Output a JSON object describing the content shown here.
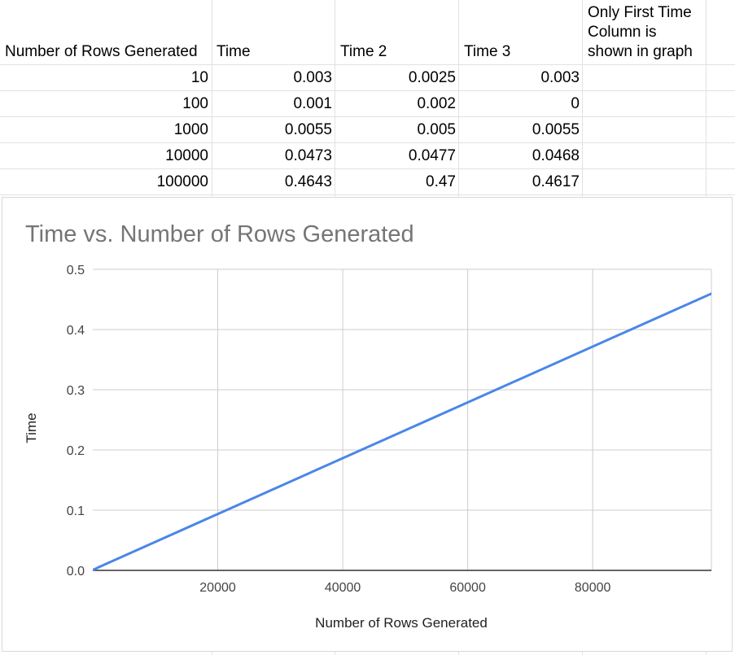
{
  "sheet": {
    "headers": [
      "Number of Rows Generated",
      "Time",
      "Time 2",
      "Time 3"
    ],
    "note": [
      "Only First Time",
      "Column is",
      "shown in graph"
    ],
    "rows": [
      [
        "10",
        "0.003",
        "0.0025",
        "0.003"
      ],
      [
        "100",
        "0.001",
        "0.002",
        "0"
      ],
      [
        "1000",
        "0.0055",
        "0.005",
        "0.0055"
      ],
      [
        "10000",
        "0.0473",
        "0.0477",
        "0.0468"
      ],
      [
        "100000",
        "0.4643",
        "0.47",
        "0.4617"
      ]
    ]
  },
  "chart_data": {
    "type": "line",
    "title": "Time vs. Number of Rows Generated",
    "xlabel": "Number of Rows Generated",
    "ylabel": "Time",
    "xlim": [
      0,
      99000
    ],
    "ylim": [
      0,
      0.5
    ],
    "x_ticks": [
      "20000",
      "40000",
      "60000",
      "80000"
    ],
    "y_ticks": [
      "0.0",
      "0.1",
      "0.2",
      "0.3",
      "0.4",
      "0.5"
    ],
    "grid": true,
    "colors": {
      "line": "#4a86e8",
      "grid": "#cccccc",
      "axis": "#333333"
    },
    "series": [
      {
        "x": [
          10,
          100,
          1000,
          10000,
          100000
        ],
        "values": [
          0.003,
          0.001,
          0.0055,
          0.0473,
          0.4643
        ]
      }
    ]
  }
}
